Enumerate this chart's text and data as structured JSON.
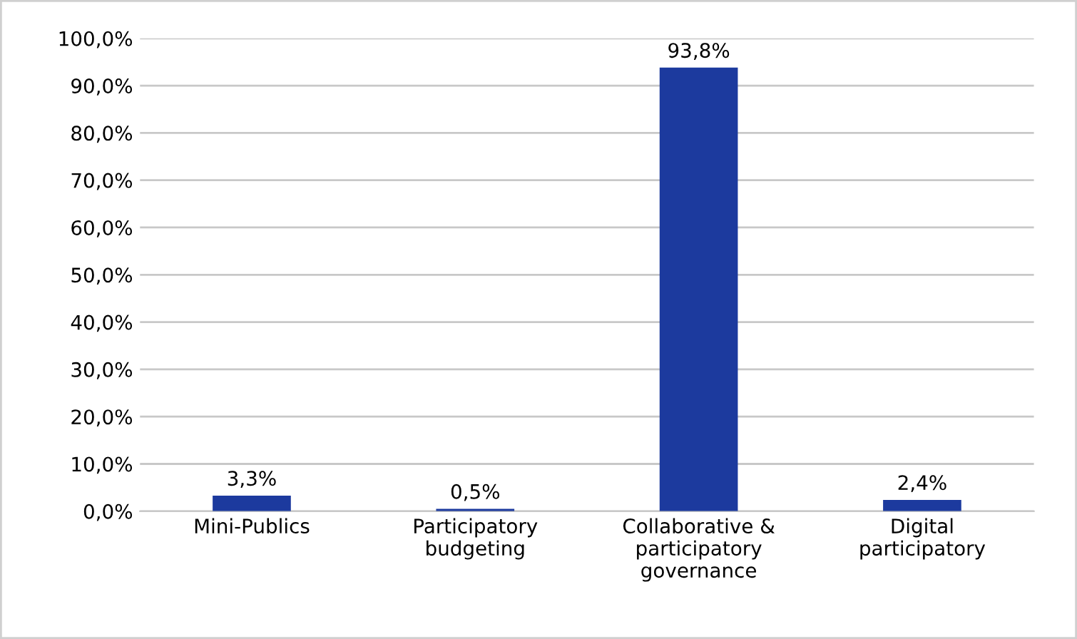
{
  "chart_data": {
    "type": "bar",
    "categories": [
      "Mini-Publics",
      "Participatory\nbudgeting",
      "Collaborative &\nparticipatory\ngovernance",
      "Digital\nparticipatory"
    ],
    "values": [
      3.3,
      0.5,
      93.8,
      2.4
    ],
    "color": "#1c3a9e",
    "value_labels": [
      "3,3%",
      "0,5%",
      "93,8%",
      "2,4%"
    ],
    "ylim": [
      0,
      100
    ],
    "yticks": [
      {
        "value": 0,
        "label": "0,0%"
      },
      {
        "value": 10,
        "label": "10,0%"
      },
      {
        "value": 20,
        "label": "20,0%"
      },
      {
        "value": 30,
        "label": "30,0%"
      },
      {
        "value": 40,
        "label": "40,0%"
      },
      {
        "value": 50,
        "label": "50,0%"
      },
      {
        "value": 60,
        "label": "60,0%"
      },
      {
        "value": 70,
        "label": "70,0%"
      },
      {
        "value": 80,
        "label": "80,0%"
      },
      {
        "value": 90,
        "label": "90,0%"
      },
      {
        "value": 100,
        "label": "100,0%"
      }
    ],
    "grid": "y",
    "legend": false
  }
}
